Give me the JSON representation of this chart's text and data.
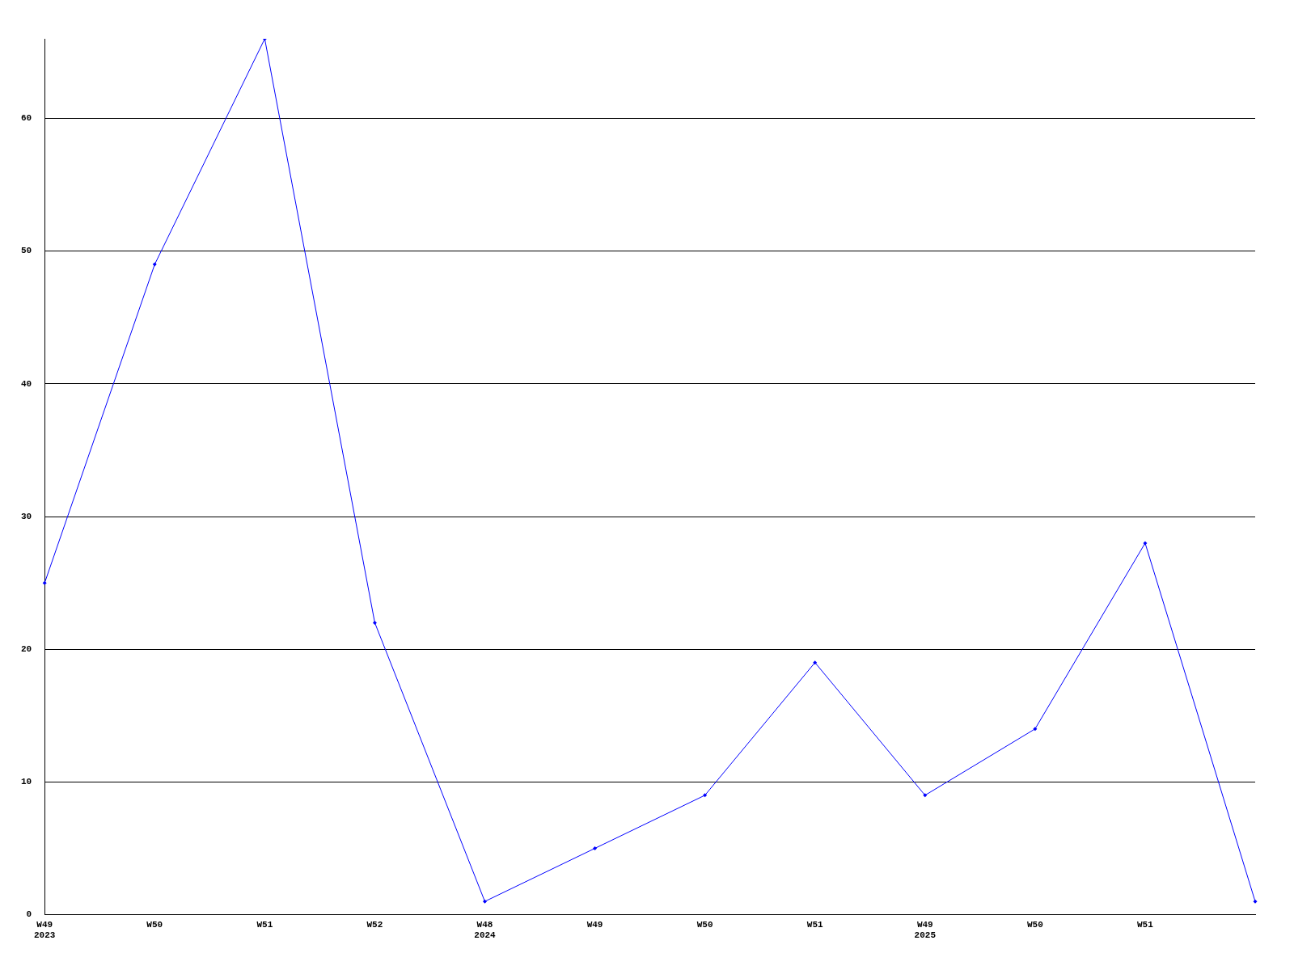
{
  "chart_data": {
    "type": "line",
    "categories": [
      "W49\n2023",
      "W50",
      "W51",
      "W52",
      "W48\n2024",
      "W49",
      "W50",
      "W51",
      "W49\n2025",
      "W50",
      "W51",
      null
    ],
    "series": [
      {
        "color": "#0000ff",
        "values": [
          25,
          49,
          66,
          22,
          1,
          5,
          9,
          19,
          9,
          14,
          28,
          1
        ]
      }
    ],
    "ylim": [
      0,
      66
    ],
    "yticks": [
      0,
      10,
      20,
      30,
      40,
      50,
      60
    ],
    "grid": "y",
    "legend": false,
    "marker": "diamond",
    "line_style": "solid"
  }
}
